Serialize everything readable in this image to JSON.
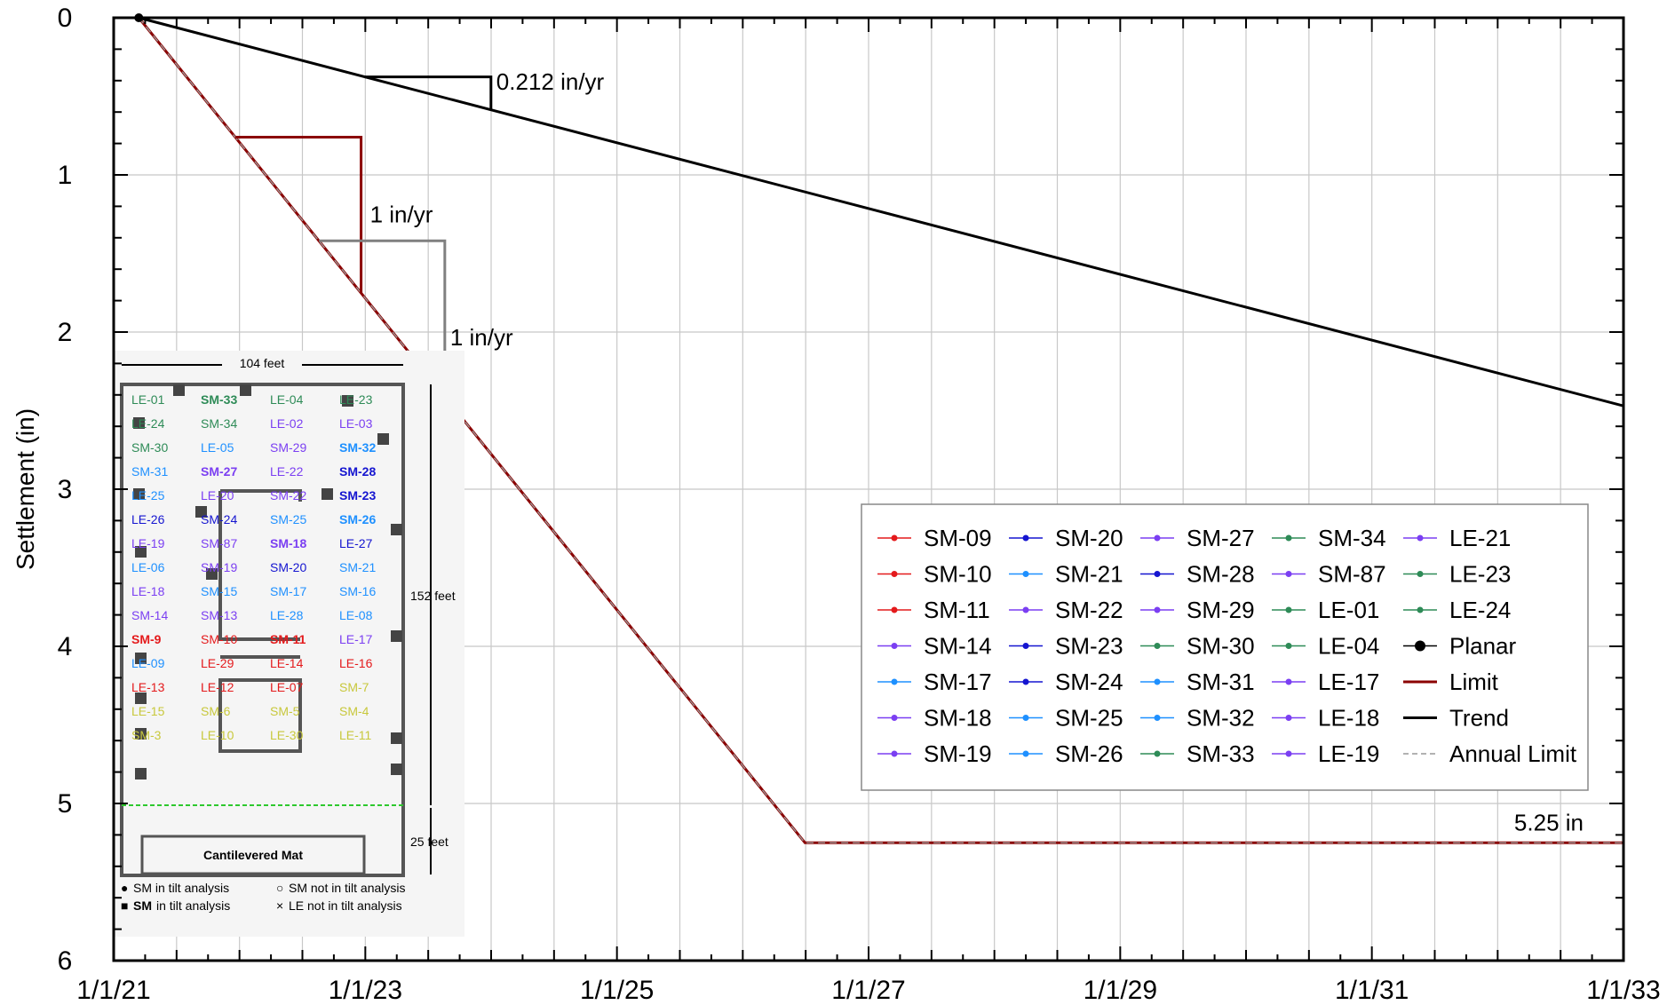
{
  "chart_data": {
    "type": "line",
    "ylabel": "Settlement (in)",
    "xlabel": "",
    "title": "",
    "x_ticks": [
      "1/1/21",
      "1/1/23",
      "1/1/25",
      "1/1/27",
      "1/1/29",
      "1/1/31",
      "1/1/33"
    ],
    "xlim": [
      "2021-01-01",
      "2033-01-01"
    ],
    "y_ticks": [
      "0",
      "1",
      "2",
      "3",
      "4",
      "5",
      "6"
    ],
    "ylim": [
      0,
      6
    ],
    "y_inverted": true,
    "grid": true,
    "legend_placement": "bottom-right",
    "series": [
      {
        "name": "Trend",
        "color": "#000000",
        "points": [
          [
            "2021-03-15",
            0
          ],
          [
            "2033-01-01",
            2.47
          ]
        ]
      },
      {
        "name": "Limit",
        "color": "#8b0000",
        "points": [
          [
            "2021-03-15",
            0
          ],
          [
            "2026-07-01",
            5.25
          ],
          [
            "2033-01-01",
            5.25
          ]
        ]
      },
      {
        "name": "Annual Limit",
        "color": "#999999",
        "dashed": true,
        "points": [
          [
            "2021-03-15",
            0
          ],
          [
            "2026-07-01",
            5.25
          ],
          [
            "2033-01-01",
            5.25
          ]
        ]
      },
      {
        "name": "Planar",
        "color": "#000000",
        "points": [
          [
            "2021-03-15",
            0
          ]
        ]
      }
    ],
    "annotations": [
      {
        "text": "0.212 in/yr",
        "color": "#000000"
      },
      {
        "text": "1 in/yr",
        "color": "#8b0000"
      },
      {
        "text": "1 in/yr",
        "color": "#808080"
      },
      {
        "text": "5.25 in",
        "color": "#000000"
      }
    ],
    "legend": [
      {
        "label": "SM-09",
        "color": "#e41a1c"
      },
      {
        "label": "SM-10",
        "color": "#e41a1c"
      },
      {
        "label": "SM-11",
        "color": "#e41a1c"
      },
      {
        "label": "SM-14",
        "color": "#7b3ff2"
      },
      {
        "label": "SM-17",
        "color": "#1e90ff"
      },
      {
        "label": "SM-18",
        "color": "#7b3ff2"
      },
      {
        "label": "SM-19",
        "color": "#7b3ff2"
      },
      {
        "label": "SM-20",
        "color": "#1515d0"
      },
      {
        "label": "SM-21",
        "color": "#1e90ff"
      },
      {
        "label": "SM-22",
        "color": "#7b3ff2"
      },
      {
        "label": "SM-23",
        "color": "#1515d0"
      },
      {
        "label": "SM-24",
        "color": "#1515d0"
      },
      {
        "label": "SM-25",
        "color": "#1e90ff"
      },
      {
        "label": "SM-26",
        "color": "#1e90ff"
      },
      {
        "label": "SM-27",
        "color": "#7b3ff2"
      },
      {
        "label": "SM-28",
        "color": "#1515d0"
      },
      {
        "label": "SM-29",
        "color": "#7b3ff2"
      },
      {
        "label": "SM-30",
        "color": "#2e8b57"
      },
      {
        "label": "SM-31",
        "color": "#1e90ff"
      },
      {
        "label": "SM-32",
        "color": "#1e90ff"
      },
      {
        "label": "SM-33",
        "color": "#2e8b57"
      },
      {
        "label": "SM-34",
        "color": "#2e8b57"
      },
      {
        "label": "SM-87",
        "color": "#7b3ff2"
      },
      {
        "label": "LE-01",
        "color": "#2e8b57"
      },
      {
        "label": "LE-04",
        "color": "#2e8b57"
      },
      {
        "label": "LE-17",
        "color": "#7b3ff2"
      },
      {
        "label": "LE-18",
        "color": "#7b3ff2"
      },
      {
        "label": "LE-19",
        "color": "#7b3ff2"
      },
      {
        "label": "LE-21",
        "color": "#7b3ff2"
      },
      {
        "label": "LE-23",
        "color": "#2e8b57"
      },
      {
        "label": "LE-24",
        "color": "#2e8b57"
      },
      {
        "label": "Planar",
        "color": "#000000"
      },
      {
        "label": "Limit",
        "color": "#8b0000"
      },
      {
        "label": "Trend",
        "color": "#000000"
      },
      {
        "label": "Annual Limit",
        "color": "#999999"
      }
    ]
  },
  "inset": {
    "width_label": "104 feet",
    "height_label": "152 feet",
    "bottom_label": "25 feet",
    "mat_label": "Cantilevered Mat",
    "key": [
      {
        "symbol": "●",
        "text": "SM in tilt analysis",
        "bold_prefix": ""
      },
      {
        "symbol": "○",
        "text": "SM not in tilt analysis",
        "bold_prefix": ""
      },
      {
        "symbol": "■",
        "text": " in tilt analysis",
        "bold_prefix": "SM"
      },
      {
        "symbol": "×",
        "text": "LE not in tilt analysis",
        "bold_prefix": ""
      }
    ],
    "labels": [
      {
        "t": "LE-01",
        "c": "#2e8b57"
      },
      {
        "t": "SM-33",
        "c": "#2e8b57",
        "b": true
      },
      {
        "t": "LE-04",
        "c": "#2e8b57"
      },
      {
        "t": "LE-23",
        "c": "#2e8b57"
      },
      {
        "t": "LE-24",
        "c": "#2e8b57"
      },
      {
        "t": "SM-34",
        "c": "#2e8b57"
      },
      {
        "t": "LE-02",
        "c": "#7b3ff2"
      },
      {
        "t": "LE-03",
        "c": "#7b3ff2"
      },
      {
        "t": "SM-30",
        "c": "#2e8b57"
      },
      {
        "t": "LE-05",
        "c": "#1e90ff"
      },
      {
        "t": "SM-29",
        "c": "#7b3ff2"
      },
      {
        "t": "SM-32",
        "c": "#1e90ff",
        "b": true
      },
      {
        "t": "SM-31",
        "c": "#1e90ff"
      },
      {
        "t": "SM-27",
        "c": "#7b3ff2",
        "b": true
      },
      {
        "t": "LE-22",
        "c": "#7b3ff2"
      },
      {
        "t": "SM-28",
        "c": "#1515d0",
        "b": true
      },
      {
        "t": "LE-25",
        "c": "#1e90ff"
      },
      {
        "t": "LE-20",
        "c": "#7b3ff2"
      },
      {
        "t": "SM-22",
        "c": "#7b3ff2"
      },
      {
        "t": "SM-23",
        "c": "#1515d0",
        "b": true
      },
      {
        "t": "LE-26",
        "c": "#1515d0"
      },
      {
        "t": "SM-24",
        "c": "#1515d0"
      },
      {
        "t": "SM-25",
        "c": "#1e90ff"
      },
      {
        "t": "SM-26",
        "c": "#1e90ff",
        "b": true
      },
      {
        "t": "LE-19",
        "c": "#7b3ff2"
      },
      {
        "t": "SM-87",
        "c": "#7b3ff2"
      },
      {
        "t": "SM-18",
        "c": "#7b3ff2",
        "b": true
      },
      {
        "t": "LE-27",
        "c": "#1515d0"
      },
      {
        "t": "LE-06",
        "c": "#1e90ff"
      },
      {
        "t": "SM-19",
        "c": "#7b3ff2"
      },
      {
        "t": "SM-20",
        "c": "#1515d0"
      },
      {
        "t": "SM-21",
        "c": "#1e90ff"
      },
      {
        "t": "LE-18",
        "c": "#7b3ff2"
      },
      {
        "t": "SM-15",
        "c": "#1e90ff"
      },
      {
        "t": "SM-17",
        "c": "#1e90ff"
      },
      {
        "t": "SM-16",
        "c": "#1e90ff"
      },
      {
        "t": "SM-14",
        "c": "#7b3ff2"
      },
      {
        "t": "SM-13",
        "c": "#7b3ff2"
      },
      {
        "t": "LE-28",
        "c": "#1e90ff"
      },
      {
        "t": "LE-08",
        "c": "#1e90ff"
      },
      {
        "t": "SM-9",
        "c": "#e41a1c",
        "b": true
      },
      {
        "t": "SM-10",
        "c": "#e41a1c"
      },
      {
        "t": "SM-11",
        "c": "#e41a1c",
        "b": true
      },
      {
        "t": "LE-17",
        "c": "#7b3ff2"
      },
      {
        "t": "LE-09",
        "c": "#1e90ff"
      },
      {
        "t": "LE-29",
        "c": "#e41a1c"
      },
      {
        "t": "LE-14",
        "c": "#e41a1c"
      },
      {
        "t": "LE-16",
        "c": "#e41a1c"
      },
      {
        "t": "LE-13",
        "c": "#e41a1c"
      },
      {
        "t": "LE-12",
        "c": "#e41a1c"
      },
      {
        "t": "LE-07",
        "c": "#e41a1c"
      },
      {
        "t": "SM-7",
        "c": "#c8c83c"
      },
      {
        "t": "LE-15",
        "c": "#c8c83c"
      },
      {
        "t": "SM-6",
        "c": "#c8c83c"
      },
      {
        "t": "SM-5",
        "c": "#c8c83c"
      },
      {
        "t": "SM-4",
        "c": "#c8c83c"
      },
      {
        "t": "SM-3",
        "c": "#c8c83c"
      },
      {
        "t": "LE-10",
        "c": "#c8c83c"
      },
      {
        "t": "LE-30",
        "c": "#c8c83c"
      },
      {
        "t": "LE-11",
        "c": "#c8c83c"
      }
    ]
  }
}
